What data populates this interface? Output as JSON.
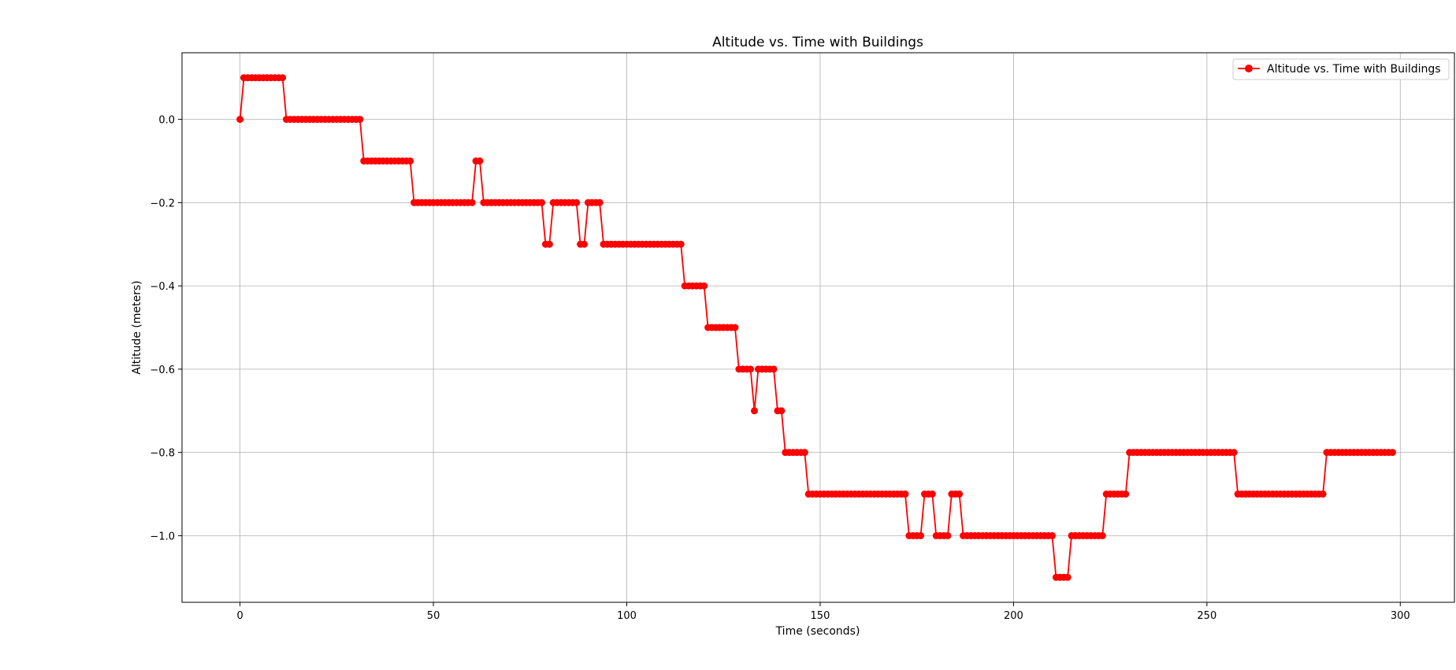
{
  "chart_data": {
    "type": "line",
    "title": "Altitude vs. Time with Buildings",
    "xlabel": "Time (seconds)",
    "ylabel": "Altitude (meters)",
    "xlim": [
      -15,
      314
    ],
    "ylim": [
      -1.16,
      0.16
    ],
    "xticks": [
      0,
      50,
      100,
      150,
      200,
      250,
      300
    ],
    "xtick_labels": [
      "0",
      "50",
      "100",
      "150",
      "200",
      "250",
      "300"
    ],
    "yticks": [
      0.0,
      -0.2,
      -0.4,
      -0.6,
      -0.8,
      -1.0
    ],
    "ytick_labels": [
      "0.0",
      "−0.2",
      "−0.4",
      "−0.6",
      "−0.8",
      "−1.0"
    ],
    "grid": true,
    "legend_position": "top-right",
    "series": [
      {
        "name": "Altitude vs. Time with Buildings",
        "color": "#ff0000",
        "marker": "circle",
        "segments": [
          [
            0,
            0,
            0.0
          ],
          [
            1,
            11,
            0.1
          ],
          [
            12,
            31,
            0.0
          ],
          [
            32,
            44,
            -0.1
          ],
          [
            45,
            60,
            -0.2
          ],
          [
            61,
            62,
            -0.1
          ],
          [
            63,
            78,
            -0.2
          ],
          [
            79,
            80,
            -0.3
          ],
          [
            81,
            87,
            -0.2
          ],
          [
            88,
            89,
            -0.3
          ],
          [
            90,
            93,
            -0.2
          ],
          [
            94,
            114,
            -0.3
          ],
          [
            115,
            120,
            -0.4
          ],
          [
            121,
            128,
            -0.5
          ],
          [
            129,
            132,
            -0.6
          ],
          [
            133,
            133,
            -0.7
          ],
          [
            134,
            138,
            -0.6
          ],
          [
            139,
            140,
            -0.7
          ],
          [
            141,
            146,
            -0.8
          ],
          [
            147,
            172,
            -0.9
          ],
          [
            173,
            176,
            -1.0
          ],
          [
            177,
            179,
            -0.9
          ],
          [
            180,
            183,
            -1.0
          ],
          [
            184,
            186,
            -0.9
          ],
          [
            187,
            210,
            -1.0
          ],
          [
            211,
            214,
            -1.1
          ],
          [
            215,
            223,
            -1.0
          ],
          [
            224,
            229,
            -0.9
          ],
          [
            230,
            257,
            -0.8
          ],
          [
            258,
            280,
            -0.9
          ],
          [
            281,
            298,
            -0.8
          ]
        ]
      }
    ]
  }
}
